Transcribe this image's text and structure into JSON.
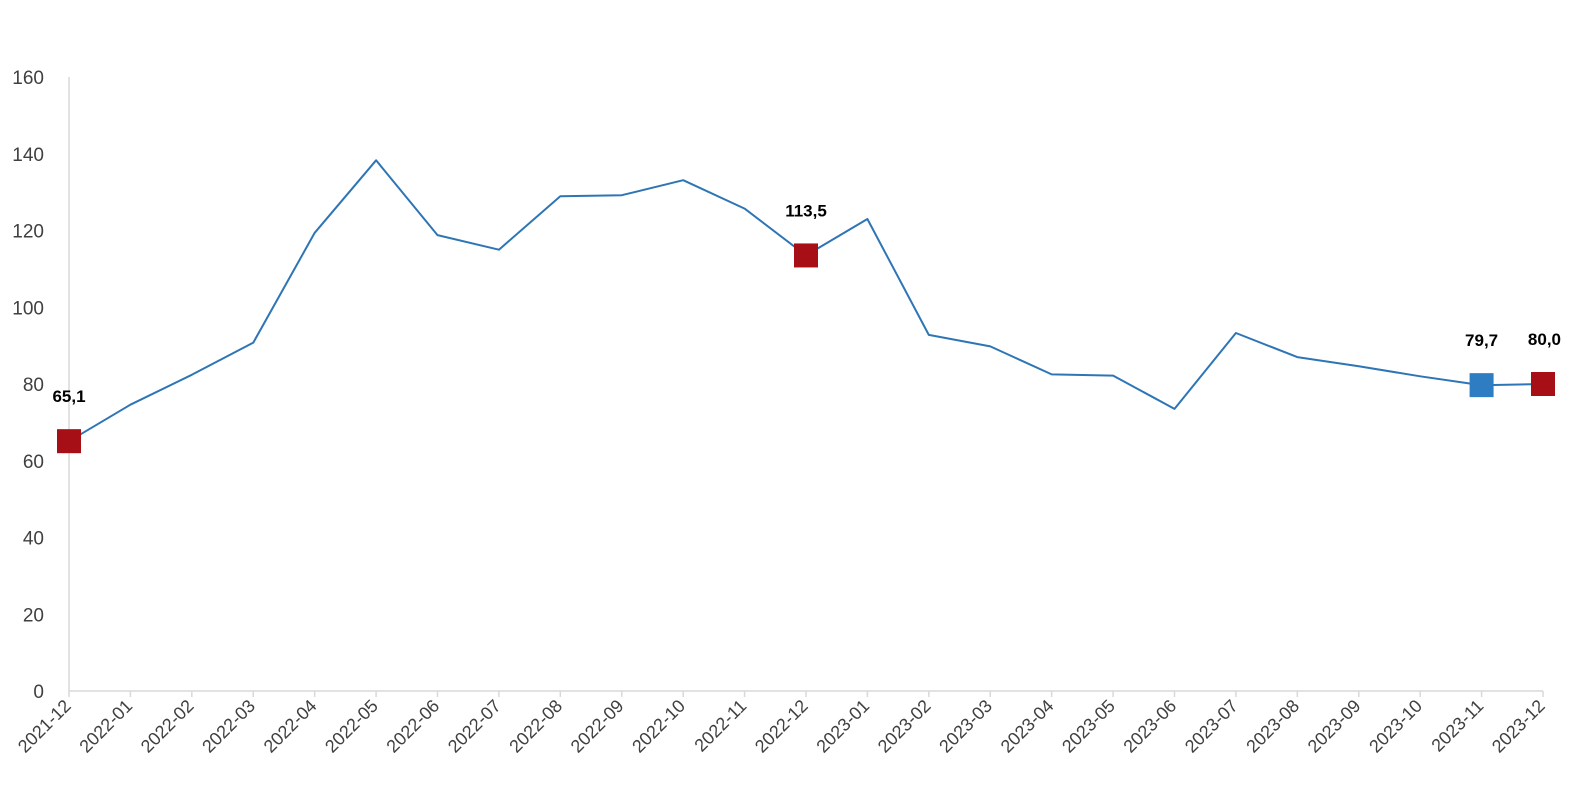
{
  "chart_data": {
    "type": "line",
    "title": "",
    "xlabel": "",
    "ylabel": "",
    "ylim": [
      0,
      160
    ],
    "yticks": [
      "0",
      "20",
      "40",
      "60",
      "80",
      "100",
      "120",
      "140",
      "160"
    ],
    "grid": false,
    "legend": "none",
    "categories": [
      "2021-12",
      "2022-01",
      "2022-02",
      "2022-03",
      "2022-04",
      "2022-05",
      "2022-06",
      "2022-07",
      "2022-08",
      "2022-09",
      "2022-10",
      "2022-11",
      "2022-12",
      "2023-01",
      "2023-02",
      "2023-03",
      "2023-04",
      "2023-05",
      "2023-06",
      "2023-07",
      "2023-08",
      "2023-09",
      "2023-10",
      "2023-11",
      "2023-12"
    ],
    "series": [
      {
        "values": [
          65.1,
          74.6,
          82.4,
          90.8,
          119.4,
          138.3,
          118.8,
          115.0,
          128.9,
          129.2,
          133.1,
          125.7,
          113.5,
          123.0,
          92.8,
          89.8,
          82.5,
          82.2,
          73.5,
          93.3,
          87.0,
          84.6,
          82.0,
          79.7,
          80.0
        ],
        "color": "#2E75B6"
      }
    ],
    "highlighted_points": [
      {
        "index": 0,
        "label": "65,1",
        "color": "#A50F15"
      },
      {
        "index": 12,
        "label": "113,5",
        "color": "#A50F15"
      },
      {
        "index": 23,
        "label": "79,7",
        "color": "#2E7DC2"
      },
      {
        "index": 24,
        "label": "80,0",
        "color": "#A50F15"
      }
    ],
    "axis_color": "#D9D9D9"
  }
}
